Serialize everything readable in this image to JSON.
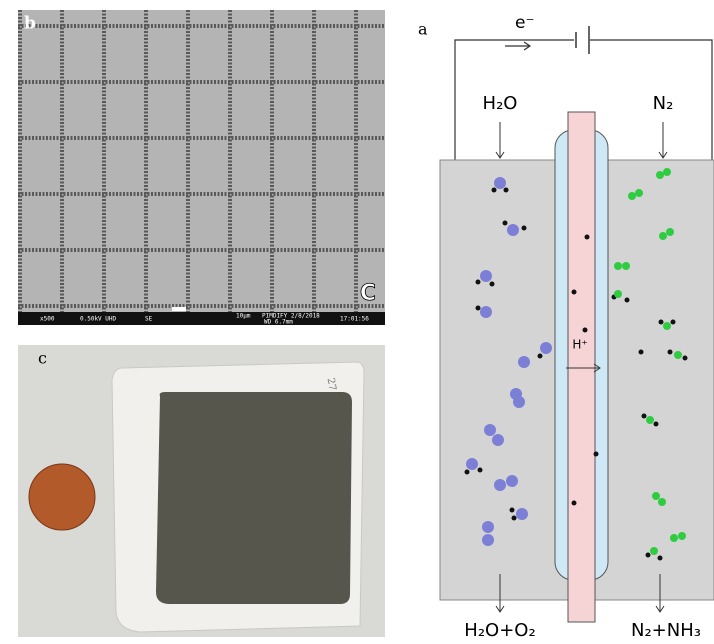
{
  "panels": {
    "b": {
      "label": "b",
      "marker": "C",
      "footer": [
        "x500",
        "0.50kV UHD",
        "SE",
        "10μm",
        "PIMDIFY 2/8/2018",
        "WD 6.7mm",
        "17:01:56"
      ]
    },
    "c": {
      "label": "c",
      "note": "27"
    },
    "a": {
      "label": "a",
      "electron": "e⁻",
      "inlet_left": "H₂O",
      "inlet_right": "N₂",
      "proton": "H⁺",
      "outlet_left": "H₂O+O₂",
      "outlet_right": "N₂+NH₃"
    }
  }
}
